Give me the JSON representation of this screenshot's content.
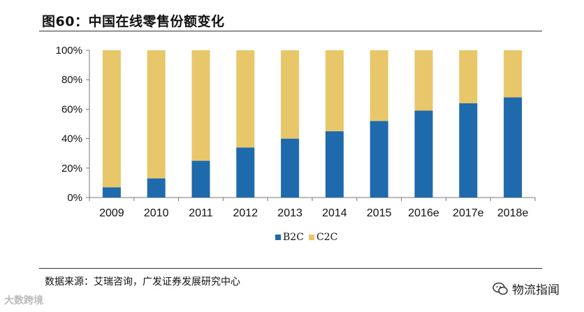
{
  "header": {
    "title": "图60：中国在线零售份额变化"
  },
  "footer": {
    "source": "数据来源：艾瑞咨询，广发证券发展研究中心",
    "watermark_right": "物流指闻",
    "watermark_left": "大数跨境",
    "watermark_left_icon": "wechat-icon"
  },
  "chart_data": {
    "type": "bar",
    "stacked": true,
    "categories": [
      "2009",
      "2010",
      "2011",
      "2012",
      "2013",
      "2014",
      "2015",
      "2016e",
      "2017e",
      "2018e"
    ],
    "series": [
      {
        "name": "B2C",
        "color": "#1f6aad",
        "values": [
          7,
          13,
          25,
          34,
          40,
          45,
          52,
          59,
          64,
          68
        ]
      },
      {
        "name": "C2C",
        "color": "#e8c76a",
        "values": [
          93,
          87,
          75,
          66,
          60,
          55,
          48,
          41,
          36,
          32
        ]
      }
    ],
    "yticks": [
      "0%",
      "20%",
      "40%",
      "60%",
      "80%",
      "100%"
    ],
    "ylim": [
      0,
      100
    ],
    "title": "",
    "xlabel": "",
    "ylabel": "",
    "grid": false,
    "legend": "bottom-center"
  }
}
